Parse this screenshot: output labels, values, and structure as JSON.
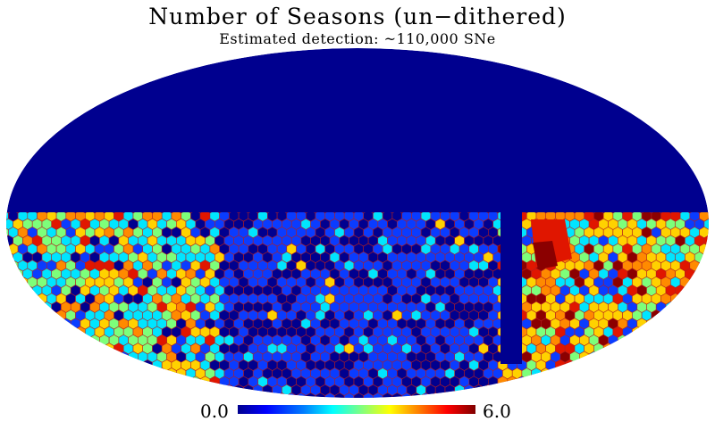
{
  "title": "Number of Seasons (un−dithered)",
  "subtitle": "Estimated detection: ~110,000 SNe",
  "colorbar": {
    "min_label": "0.0",
    "max_label": "6.0",
    "min": 0.0,
    "max": 6.0,
    "colormap": "jet"
  },
  "map": {
    "projection": "mollweide",
    "background_value_color": "#00008f",
    "colors": {
      "zero": "#00008f",
      "low": "#0a3cff",
      "cyan": "#00e5ff",
      "green": "#7dff7a",
      "yellow": "#ffd200",
      "orange": "#ff8a00",
      "red": "#e01600",
      "dark_red": "#8b0000",
      "hex_outline": "#b41e1e"
    }
  }
}
